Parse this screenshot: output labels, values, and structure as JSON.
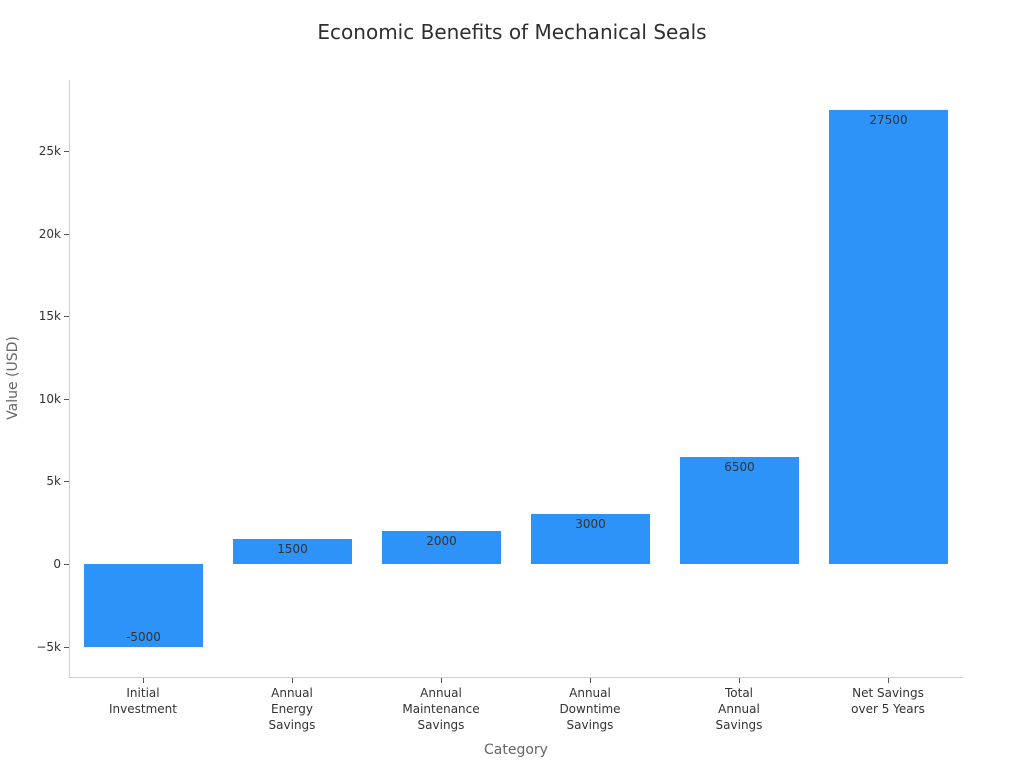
{
  "chart_data": {
    "type": "bar",
    "title": "Economic Benefits of Mechanical Seals",
    "xlabel": "Category",
    "ylabel": "Value (USD)",
    "categories": [
      "Initial\nInvestment",
      "Annual\nEnergy\nSavings",
      "Annual\nMaintenance\nSavings",
      "Annual\nDowntime\nSavings",
      "Total\nAnnual\nSavings",
      "Net Savings\nover 5 Years"
    ],
    "values": [
      -5000,
      1500,
      2000,
      3000,
      6500,
      27500
    ],
    "data_labels": [
      "-5000",
      "1500",
      "2000",
      "3000",
      "6500",
      "27500"
    ],
    "yticks": [
      -5000,
      0,
      5000,
      10000,
      15000,
      20000,
      25000
    ],
    "ytick_labels": [
      "−5k",
      "0",
      "5k",
      "10k",
      "15k",
      "20k",
      "25k"
    ],
    "ylim": [
      -6840,
      29300
    ],
    "bar_color": "#2e93f8",
    "grid": false,
    "legend": null
  }
}
